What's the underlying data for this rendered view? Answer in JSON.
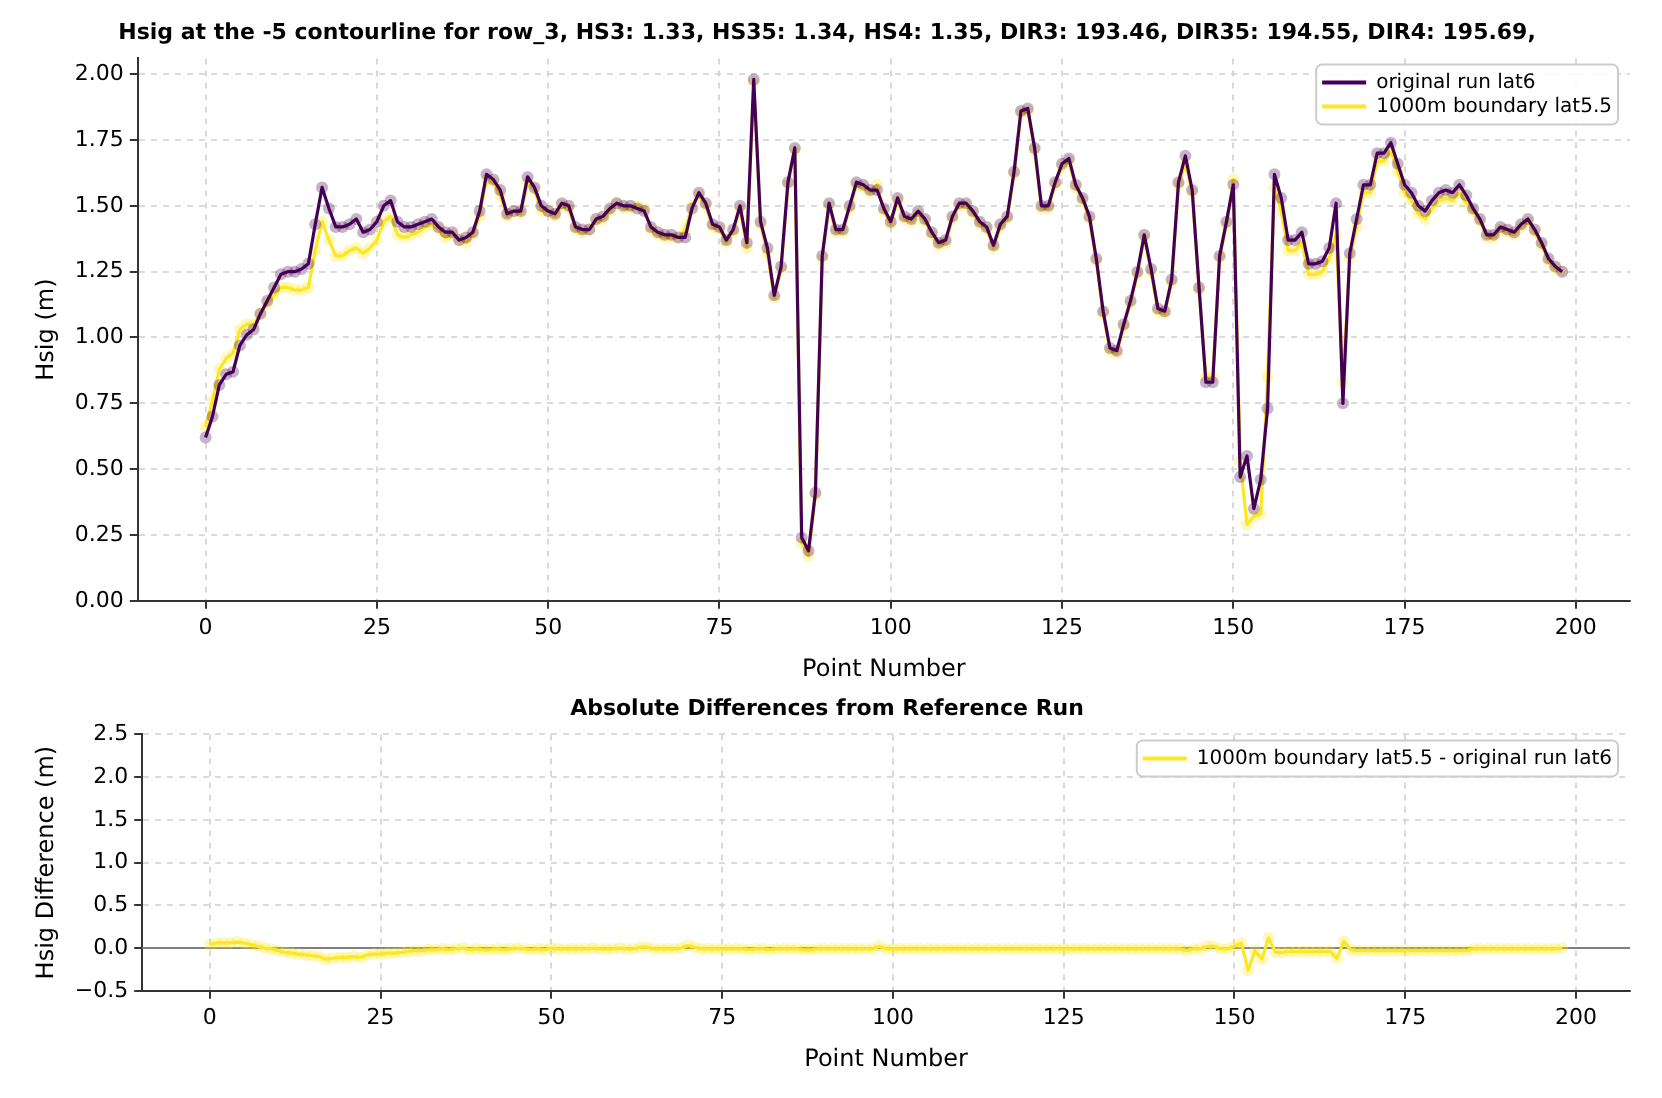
{
  "chart_data": [
    {
      "type": "line",
      "title": "Hsig at the -5 contourline for row_3, HS3: 1.33, HS35: 1.34, HS4: 1.35, DIR3: 193.46, DIR35: 194.55, DIR4: 195.69,",
      "xlabel": "Point Number",
      "ylabel": "Hsig (m)",
      "grid": true,
      "legend": "top right",
      "marker": "circle",
      "x": [
        0,
        1,
        2,
        3,
        4,
        5,
        6,
        7,
        8,
        9,
        10,
        11,
        12,
        13,
        14,
        15,
        16,
        17,
        18,
        19,
        20,
        21,
        22,
        23,
        24,
        25,
        26,
        27,
        28,
        29,
        30,
        31,
        32,
        33,
        34,
        35,
        36,
        37,
        38,
        39,
        40,
        41,
        42,
        43,
        44,
        45,
        46,
        47,
        48,
        49,
        50,
        51,
        52,
        53,
        54,
        55,
        56,
        57,
        58,
        59,
        60,
        61,
        62,
        63,
        64,
        65,
        66,
        67,
        68,
        69,
        70,
        71,
        72,
        73,
        74,
        75,
        76,
        77,
        78,
        79,
        80,
        81,
        82,
        83,
        84,
        85,
        86,
        87,
        88,
        89,
        90,
        91,
        92,
        93,
        94,
        95,
        96,
        97,
        98,
        99,
        100,
        101,
        102,
        103,
        104,
        105,
        106,
        107,
        108,
        109,
        110,
        111,
        112,
        113,
        114,
        115,
        116,
        117,
        118,
        119,
        120,
        121,
        122,
        123,
        124,
        125,
        126,
        127,
        128,
        129,
        130,
        131,
        132,
        133,
        134,
        135,
        136,
        137,
        138,
        139,
        140,
        141,
        142,
        143,
        144,
        145,
        146,
        147,
        148,
        149,
        150,
        151,
        152,
        153,
        154,
        155,
        156,
        157,
        158,
        159,
        160,
        161,
        162,
        163,
        164,
        165,
        166,
        167,
        168,
        169,
        170,
        171,
        172,
        173,
        174,
        175,
        176,
        177,
        178,
        179,
        180,
        181,
        182,
        183,
        184,
        185,
        186,
        187,
        188,
        189,
        190,
        191,
        192,
        193,
        194,
        195,
        196,
        197,
        198
      ],
      "xlim": [
        -9.9,
        207.9
      ],
      "xticks": [
        0,
        25,
        50,
        75,
        100,
        125,
        150,
        175,
        200
      ],
      "ylim": [
        0,
        2.06
      ],
      "yticks": [
        {
          "value": 0,
          "label": "0.00"
        },
        {
          "value": 0.25,
          "label": "0.25"
        },
        {
          "value": 0.5,
          "label": "0.50"
        },
        {
          "value": 0.75,
          "label": "0.75"
        },
        {
          "value": 1,
          "label": "1.00"
        },
        {
          "value": 1.25,
          "label": "1.25"
        },
        {
          "value": 1.5,
          "label": "1.50"
        },
        {
          "value": 1.75,
          "label": "1.75"
        },
        {
          "value": 2,
          "label": "2.00"
        }
      ],
      "series": [
        {
          "name": "original run lat6",
          "color": "#440154",
          "values": [
            0.62,
            0.7,
            0.82,
            0.86,
            0.87,
            0.97,
            1.01,
            1.03,
            1.09,
            1.14,
            1.19,
            1.24,
            1.25,
            1.25,
            1.26,
            1.28,
            1.43,
            1.57,
            1.49,
            1.42,
            1.42,
            1.43,
            1.45,
            1.4,
            1.41,
            1.44,
            1.5,
            1.52,
            1.44,
            1.42,
            1.42,
            1.43,
            1.44,
            1.45,
            1.42,
            1.4,
            1.4,
            1.37,
            1.38,
            1.4,
            1.48,
            1.62,
            1.6,
            1.56,
            1.47,
            1.48,
            1.48,
            1.61,
            1.57,
            1.5,
            1.48,
            1.47,
            1.51,
            1.5,
            1.42,
            1.41,
            1.41,
            1.45,
            1.46,
            1.49,
            1.51,
            1.5,
            1.5,
            1.49,
            1.48,
            1.42,
            1.4,
            1.39,
            1.39,
            1.38,
            1.38,
            1.49,
            1.55,
            1.51,
            1.43,
            1.42,
            1.37,
            1.41,
            1.5,
            1.36,
            1.98,
            1.44,
            1.34,
            1.16,
            1.27,
            1.59,
            1.72,
            0.24,
            0.19,
            0.41,
            1.31,
            1.51,
            1.41,
            1.41,
            1.5,
            1.59,
            1.58,
            1.56,
            1.56,
            1.49,
            1.44,
            1.53,
            1.46,
            1.45,
            1.48,
            1.45,
            1.4,
            1.36,
            1.37,
            1.46,
            1.51,
            1.51,
            1.48,
            1.44,
            1.42,
            1.35,
            1.43,
            1.46,
            1.63,
            1.86,
            1.87,
            1.72,
            1.5,
            1.5,
            1.59,
            1.66,
            1.68,
            1.58,
            1.53,
            1.46,
            1.3,
            1.1,
            0.96,
            0.95,
            1.05,
            1.14,
            1.25,
            1.39,
            1.26,
            1.11,
            1.1,
            1.22,
            1.59,
            1.69,
            1.56,
            1.19,
            0.83,
            0.83,
            1.31,
            1.44,
            1.58,
            0.47,
            0.55,
            0.35,
            0.46,
            0.73,
            1.62,
            1.53,
            1.37,
            1.37,
            1.4,
            1.28,
            1.28,
            1.29,
            1.34,
            1.51,
            0.75,
            1.32,
            1.45,
            1.58,
            1.58,
            1.7,
            1.7,
            1.74,
            1.66,
            1.58,
            1.55,
            1.5,
            1.48,
            1.52,
            1.55,
            1.56,
            1.55,
            1.58,
            1.54,
            1.49,
            1.45,
            1.39,
            1.39,
            1.42,
            1.41,
            1.4,
            1.43,
            1.45,
            1.41,
            1.36,
            1.3,
            1.27,
            1.25
          ]
        },
        {
          "name": "1000m boundary lat5.5",
          "color": "#fde725",
          "values": [
            0.66,
            0.76,
            0.88,
            0.92,
            0.94,
            1.03,
            1.05,
            1.05,
            1.09,
            1.13,
            1.16,
            1.19,
            1.19,
            1.18,
            1.18,
            1.19,
            1.33,
            1.44,
            1.37,
            1.31,
            1.31,
            1.33,
            1.34,
            1.32,
            1.34,
            1.37,
            1.44,
            1.46,
            1.39,
            1.38,
            1.39,
            1.4,
            1.42,
            1.43,
            1.41,
            1.38,
            1.39,
            1.37,
            1.36,
            1.39,
            1.46,
            1.6,
            1.59,
            1.54,
            1.46,
            1.48,
            1.47,
            1.59,
            1.56,
            1.48,
            1.48,
            1.46,
            1.5,
            1.49,
            1.41,
            1.4,
            1.41,
            1.44,
            1.45,
            1.48,
            1.51,
            1.49,
            1.49,
            1.5,
            1.49,
            1.41,
            1.39,
            1.38,
            1.38,
            1.38,
            1.41,
            1.5,
            1.54,
            1.5,
            1.42,
            1.41,
            1.36,
            1.4,
            1.49,
            1.34,
            1.97,
            1.43,
            1.32,
            1.15,
            1.26,
            1.58,
            1.71,
            0.22,
            0.17,
            0.4,
            1.3,
            1.5,
            1.4,
            1.4,
            1.49,
            1.58,
            1.57,
            1.55,
            1.58,
            1.48,
            1.43,
            1.52,
            1.45,
            1.44,
            1.47,
            1.44,
            1.39,
            1.35,
            1.36,
            1.45,
            1.5,
            1.5,
            1.47,
            1.43,
            1.41,
            1.34,
            1.42,
            1.45,
            1.62,
            1.85,
            1.86,
            1.71,
            1.49,
            1.49,
            1.58,
            1.65,
            1.67,
            1.57,
            1.52,
            1.45,
            1.29,
            1.09,
            0.95,
            0.94,
            1.04,
            1.13,
            1.24,
            1.38,
            1.25,
            1.1,
            1.09,
            1.21,
            1.58,
            1.66,
            1.55,
            1.18,
            0.85,
            0.85,
            1.3,
            1.43,
            1.6,
            0.53,
            0.29,
            0.32,
            0.33,
            0.85,
            1.57,
            1.48,
            1.33,
            1.33,
            1.36,
            1.24,
            1.24,
            1.25,
            1.3,
            1.39,
            0.83,
            1.3,
            1.42,
            1.55,
            1.55,
            1.67,
            1.67,
            1.71,
            1.63,
            1.55,
            1.52,
            1.47,
            1.45,
            1.49,
            1.52,
            1.53,
            1.52,
            1.55,
            1.51,
            1.48,
            1.44,
            1.38,
            1.38,
            1.41,
            1.4,
            1.39,
            1.42,
            1.44,
            1.4,
            1.35,
            1.29,
            1.26,
            1.25
          ]
        }
      ]
    },
    {
      "type": "line",
      "title": "Absolute Differences from Reference Run",
      "xlabel": "Point Number",
      "ylabel": "Hsig Difference (m)",
      "grid": true,
      "legend": "top right",
      "marker": "circle",
      "x": [
        0,
        1,
        2,
        3,
        4,
        5,
        6,
        7,
        8,
        9,
        10,
        11,
        12,
        13,
        14,
        15,
        16,
        17,
        18,
        19,
        20,
        21,
        22,
        23,
        24,
        25,
        26,
        27,
        28,
        29,
        30,
        31,
        32,
        33,
        34,
        35,
        36,
        37,
        38,
        39,
        40,
        41,
        42,
        43,
        44,
        45,
        46,
        47,
        48,
        49,
        50,
        51,
        52,
        53,
        54,
        55,
        56,
        57,
        58,
        59,
        60,
        61,
        62,
        63,
        64,
        65,
        66,
        67,
        68,
        69,
        70,
        71,
        72,
        73,
        74,
        75,
        76,
        77,
        78,
        79,
        80,
        81,
        82,
        83,
        84,
        85,
        86,
        87,
        88,
        89,
        90,
        91,
        92,
        93,
        94,
        95,
        96,
        97,
        98,
        99,
        100,
        101,
        102,
        103,
        104,
        105,
        106,
        107,
        108,
        109,
        110,
        111,
        112,
        113,
        114,
        115,
        116,
        117,
        118,
        119,
        120,
        121,
        122,
        123,
        124,
        125,
        126,
        127,
        128,
        129,
        130,
        131,
        132,
        133,
        134,
        135,
        136,
        137,
        138,
        139,
        140,
        141,
        142,
        143,
        144,
        145,
        146,
        147,
        148,
        149,
        150,
        151,
        152,
        153,
        154,
        155,
        156,
        157,
        158,
        159,
        160,
        161,
        162,
        163,
        164,
        165,
        166,
        167,
        168,
        169,
        170,
        171,
        172,
        173,
        174,
        175,
        176,
        177,
        178,
        179,
        180,
        181,
        182,
        183,
        184,
        185,
        186,
        187,
        188,
        189,
        190,
        191,
        192,
        193,
        194,
        195,
        196,
        197,
        198
      ],
      "xlim": [
        -9.9,
        207.9
      ],
      "xticks": [
        0,
        25,
        50,
        75,
        100,
        125,
        150,
        175,
        200
      ],
      "ylim": [
        -0.5,
        2.5
      ],
      "yticks": [
        {
          "value": -0.5,
          "label": "−0.5"
        },
        {
          "value": 0,
          "label": "0.0"
        },
        {
          "value": 0.5,
          "label": "0.5"
        },
        {
          "value": 1,
          "label": "1.0"
        },
        {
          "value": 1.5,
          "label": "1.5"
        },
        {
          "value": 2,
          "label": "2.0"
        },
        {
          "value": 2.5,
          "label": "2.5"
        }
      ],
      "ref_lines": [
        {
          "axis": "y",
          "value": 0,
          "color": "#808080"
        }
      ],
      "series": [
        {
          "name": "1000m boundary lat5.5 - original run lat6",
          "color": "#fde725",
          "values": [
            0.04,
            0.06,
            0.06,
            0.06,
            0.07,
            0.06,
            0.04,
            0.02,
            0.0,
            -0.01,
            -0.03,
            -0.05,
            -0.06,
            -0.07,
            -0.08,
            -0.09,
            -0.1,
            -0.13,
            -0.12,
            -0.11,
            -0.11,
            -0.1,
            -0.11,
            -0.08,
            -0.07,
            -0.07,
            -0.06,
            -0.06,
            -0.05,
            -0.04,
            -0.03,
            -0.03,
            -0.02,
            -0.02,
            -0.01,
            -0.02,
            -0.01,
            0.0,
            -0.02,
            -0.01,
            -0.02,
            -0.02,
            -0.01,
            -0.02,
            -0.01,
            0.0,
            -0.01,
            -0.02,
            -0.01,
            -0.02,
            0.0,
            -0.01,
            -0.01,
            -0.01,
            -0.01,
            -0.01,
            0.0,
            -0.01,
            -0.01,
            -0.01,
            0.0,
            -0.01,
            -0.01,
            0.01,
            0.01,
            -0.01,
            -0.01,
            -0.01,
            -0.01,
            0.0,
            0.03,
            0.01,
            -0.01,
            -0.01,
            -0.01,
            -0.01,
            -0.01,
            -0.01,
            -0.01,
            -0.02,
            -0.01,
            -0.01,
            -0.02,
            -0.01,
            -0.01,
            -0.01,
            -0.01,
            -0.02,
            -0.02,
            -0.01,
            -0.01,
            -0.01,
            -0.01,
            -0.01,
            -0.01,
            -0.01,
            -0.01,
            -0.01,
            0.02,
            -0.01,
            -0.01,
            -0.01,
            -0.01,
            -0.01,
            -0.01,
            -0.01,
            -0.01,
            -0.01,
            -0.01,
            -0.01,
            -0.01,
            -0.01,
            -0.01,
            -0.01,
            -0.01,
            -0.01,
            -0.01,
            -0.01,
            -0.01,
            -0.01,
            -0.01,
            -0.01,
            -0.01,
            -0.01,
            -0.01,
            -0.01,
            -0.01,
            -0.01,
            -0.01,
            -0.01,
            -0.01,
            -0.01,
            -0.01,
            -0.01,
            -0.01,
            -0.01,
            -0.01,
            -0.01,
            -0.01,
            -0.01,
            -0.01,
            -0.01,
            -0.01,
            -0.03,
            -0.01,
            -0.01,
            0.02,
            0.02,
            -0.01,
            -0.01,
            0.02,
            0.06,
            -0.26,
            -0.03,
            -0.13,
            0.12,
            -0.05,
            -0.05,
            -0.04,
            -0.04,
            -0.04,
            -0.04,
            -0.04,
            -0.04,
            -0.04,
            -0.12,
            0.08,
            -0.02,
            -0.03,
            -0.03,
            -0.03,
            -0.03,
            -0.03,
            -0.03,
            -0.03,
            -0.03,
            -0.03,
            -0.03,
            -0.03,
            -0.03,
            -0.03,
            -0.03,
            -0.03,
            -0.03,
            -0.03,
            -0.01,
            -0.01,
            -0.01,
            -0.01,
            -0.01,
            -0.01,
            -0.01,
            -0.01,
            -0.01,
            -0.01,
            -0.01,
            -0.01,
            -0.01,
            0.0
          ]
        }
      ]
    }
  ]
}
